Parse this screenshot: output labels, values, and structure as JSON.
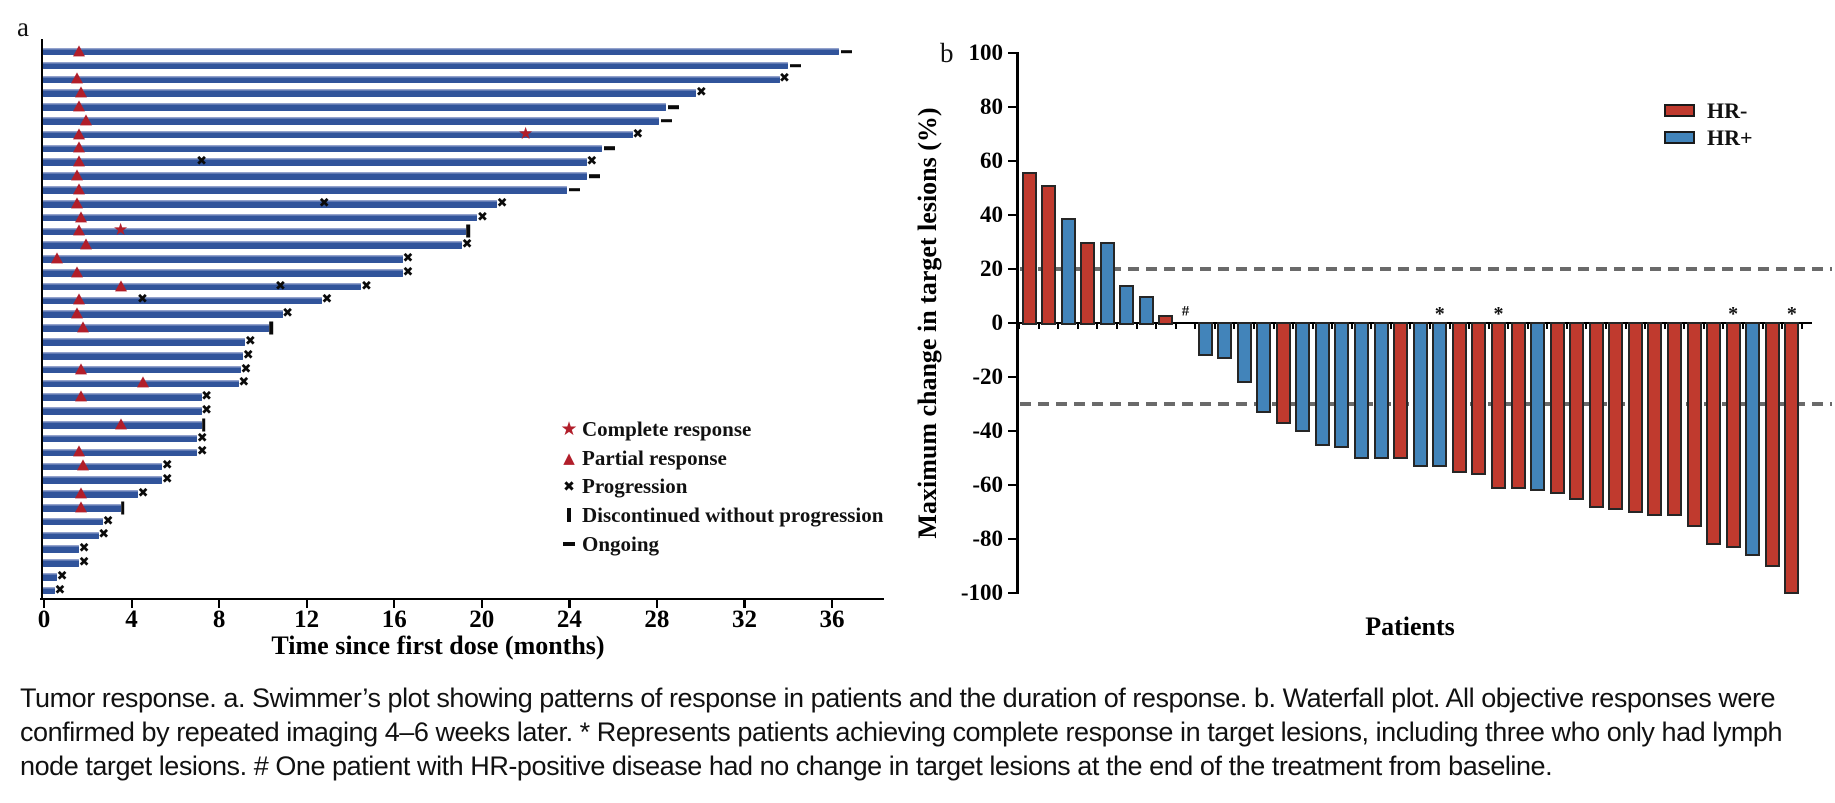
{
  "figure": {
    "panel_a_label": "a",
    "panel_b_label": "b"
  },
  "colors": {
    "swimmer_bar": "#31549B",
    "response_red": "#B11E2A",
    "marker_black": "#0A0A0A",
    "hr_negative_red": "#C03A2E",
    "hr_positive_blue": "#4284BA",
    "bar_outline": "#262626",
    "dashed_gray": "#6A6A6A"
  },
  "caption": {
    "lines": [
      "Tumor response. a. Swimmer’s plot showing patterns of response in patients and the duration of response. b. Waterfall plot. All objective responses were",
      "confirmed by repeated imaging 4–6 weeks later. * Represents patients achieving complete response in target lesions, including three who only had lymph",
      "node target lesions. # One patient with HR-positive disease had no change in target lesions at the end of the treatment from baseline."
    ]
  },
  "chart_data": [
    {
      "type": "bar",
      "subtype": "swimmer",
      "title": "",
      "xlabel": "Time since first dose (months)",
      "xlim": [
        0,
        38.3
      ],
      "xticks": [
        0,
        4,
        8,
        12,
        16,
        20,
        24,
        28,
        32,
        36
      ],
      "grid": false,
      "legend_position": "center-right",
      "legend": [
        {
          "symbol": "star",
          "label": "Complete response"
        },
        {
          "symbol": "triangle",
          "label": "Partial response"
        },
        {
          "symbol": "x",
          "label": "Progression"
        },
        {
          "symbol": "vbar",
          "label": "Discontinued without progression"
        },
        {
          "symbol": "dash",
          "label": "Ongoing"
        }
      ],
      "end_marker_meaning": {
        "x": "progression",
        "o": "ongoing",
        "d": "discontinued without progression"
      },
      "patients": [
        {
          "duration": 36.3,
          "end": "o",
          "partial_response_at": 1.6
        },
        {
          "duration": 34.0,
          "end": "o"
        },
        {
          "duration": 33.6,
          "end": "x",
          "partial_response_at": 1.5
        },
        {
          "duration": 29.8,
          "end": "x",
          "partial_response_at": 1.7
        },
        {
          "duration": 28.4,
          "end": "o",
          "partial_response_at": 1.6
        },
        {
          "duration": 28.1,
          "end": "o",
          "partial_response_at": 1.9
        },
        {
          "duration": 26.9,
          "end": "x",
          "partial_response_at": 1.6,
          "complete_response_at": 22.0
        },
        {
          "duration": 25.5,
          "end": "o",
          "partial_response_at": 1.6
        },
        {
          "duration": 24.8,
          "end": "x",
          "partial_response_at": 1.6,
          "progression_at": [
            7.2
          ]
        },
        {
          "duration": 24.8,
          "end": "o",
          "partial_response_at": 1.5
        },
        {
          "duration": 23.9,
          "end": "o",
          "partial_response_at": 1.6
        },
        {
          "duration": 20.7,
          "end": "x",
          "partial_response_at": 1.5,
          "progression_at": [
            12.8
          ]
        },
        {
          "duration": 19.8,
          "end": "x",
          "partial_response_at": 1.7
        },
        {
          "duration": 19.3,
          "end": "d",
          "partial_response_at": 1.6,
          "complete_response_at": 3.5
        },
        {
          "duration": 19.1,
          "end": "x",
          "partial_response_at": 1.9
        },
        {
          "duration": 16.4,
          "end": "x",
          "partial_response_at": 0.6
        },
        {
          "duration": 16.4,
          "end": "x",
          "partial_response_at": 1.5
        },
        {
          "duration": 14.5,
          "end": "x",
          "partial_response_at": 3.5,
          "progression_at": [
            10.8
          ]
        },
        {
          "duration": 12.7,
          "end": "x",
          "partial_response_at": 1.6,
          "progression_at": [
            4.5
          ]
        },
        {
          "duration": 10.9,
          "end": "x",
          "partial_response_at": 1.5
        },
        {
          "duration": 10.3,
          "end": "d",
          "partial_response_at": 1.8
        },
        {
          "duration": 9.2,
          "end": "x"
        },
        {
          "duration": 9.1,
          "end": "x"
        },
        {
          "duration": 9.0,
          "end": "x",
          "partial_response_at": 1.7
        },
        {
          "duration": 8.9,
          "end": "x",
          "partial_response_at": 4.5
        },
        {
          "duration": 7.2,
          "end": "x",
          "partial_response_at": 1.7
        },
        {
          "duration": 7.2,
          "end": "x"
        },
        {
          "duration": 7.2,
          "end": "d",
          "partial_response_at": 3.5
        },
        {
          "duration": 7.0,
          "end": "x"
        },
        {
          "duration": 7.0,
          "end": "x",
          "partial_response_at": 1.6
        },
        {
          "duration": 5.4,
          "end": "x",
          "partial_response_at": 1.8
        },
        {
          "duration": 5.4,
          "end": "x"
        },
        {
          "duration": 4.3,
          "end": "x",
          "partial_response_at": 1.7
        },
        {
          "duration": 3.5,
          "end": "d",
          "partial_response_at": 1.7
        },
        {
          "duration": 2.7,
          "end": "x"
        },
        {
          "duration": 2.5,
          "end": "x"
        },
        {
          "duration": 1.6,
          "end": "x"
        },
        {
          "duration": 1.6,
          "end": "x"
        },
        {
          "duration": 0.6,
          "end": "x"
        },
        {
          "duration": 0.5,
          "end": "x"
        }
      ]
    },
    {
      "type": "bar",
      "subtype": "waterfall",
      "title": "",
      "xlabel": "Patients",
      "ylabel": "Maximum change in target lesions (%)",
      "ylim": [
        -100,
        100
      ],
      "yticks": [
        100,
        80,
        60,
        40,
        20,
        0,
        -20,
        -40,
        -60,
        -80,
        -100
      ],
      "reference_lines": [
        20,
        -30
      ],
      "grid": false,
      "legend_position": "top-right",
      "legend": [
        {
          "label": "HR-",
          "group": "HR-"
        },
        {
          "label": "HR+",
          "group": "HR+"
        }
      ],
      "bars": [
        {
          "value": 56,
          "group": "HR-"
        },
        {
          "value": 51,
          "group": "HR-"
        },
        {
          "value": 39,
          "group": "HR+"
        },
        {
          "value": 30,
          "group": "HR-"
        },
        {
          "value": 30,
          "group": "HR+"
        },
        {
          "value": 14,
          "group": "HR+"
        },
        {
          "value": 10,
          "group": "HR+"
        },
        {
          "value": 3,
          "group": "HR-"
        },
        {
          "value": 0,
          "group": "HR+",
          "annotation": "#"
        },
        {
          "value": -12,
          "group": "HR+"
        },
        {
          "value": -13,
          "group": "HR+"
        },
        {
          "value": -22,
          "group": "HR+"
        },
        {
          "value": -33,
          "group": "HR+"
        },
        {
          "value": -37,
          "group": "HR-"
        },
        {
          "value": -40,
          "group": "HR+"
        },
        {
          "value": -45,
          "group": "HR+"
        },
        {
          "value": -46,
          "group": "HR+"
        },
        {
          "value": -50,
          "group": "HR+"
        },
        {
          "value": -50,
          "group": "HR+"
        },
        {
          "value": -50,
          "group": "HR-"
        },
        {
          "value": -53,
          "group": "HR+"
        },
        {
          "value": -53,
          "group": "HR+",
          "annotation": "*"
        },
        {
          "value": -55,
          "group": "HR-"
        },
        {
          "value": -56,
          "group": "HR-"
        },
        {
          "value": -61,
          "group": "HR-",
          "annotation": "*"
        },
        {
          "value": -61,
          "group": "HR-"
        },
        {
          "value": -62,
          "group": "HR+"
        },
        {
          "value": -63,
          "group": "HR-"
        },
        {
          "value": -65,
          "group": "HR-"
        },
        {
          "value": -68,
          "group": "HR-"
        },
        {
          "value": -69,
          "group": "HR-"
        },
        {
          "value": -70,
          "group": "HR-"
        },
        {
          "value": -71,
          "group": "HR-"
        },
        {
          "value": -71,
          "group": "HR-"
        },
        {
          "value": -75,
          "group": "HR-"
        },
        {
          "value": -82,
          "group": "HR-"
        },
        {
          "value": -83,
          "group": "HR-",
          "annotation": "*"
        },
        {
          "value": -86,
          "group": "HR+"
        },
        {
          "value": -90,
          "group": "HR-"
        },
        {
          "value": -100,
          "group": "HR-",
          "annotation": "*"
        }
      ]
    }
  ]
}
